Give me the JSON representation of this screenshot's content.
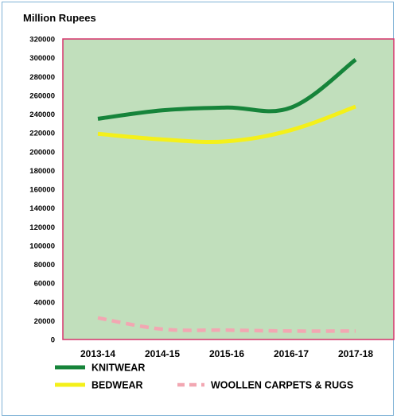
{
  "chart_data": {
    "type": "line",
    "unit_label": "Million Rupees",
    "categories": [
      "2013-14",
      "2014-15",
      "2015-16",
      "2016-17",
      "2017-18"
    ],
    "ylim": [
      0,
      320000
    ],
    "yticks": [
      "0",
      "20000",
      "40000",
      "60000",
      "80000",
      "100000",
      "120000",
      "140000",
      "160000",
      "180000",
      "200000",
      "220000",
      "240000",
      "260000",
      "280000",
      "300000",
      "320000"
    ],
    "grid": false,
    "plot_background": "#c1dfbc",
    "plot_border": "#d6336c",
    "legend_position": "bottom",
    "series": [
      {
        "name": "KNITWEAR",
        "color": "#16843a",
        "style": "solid",
        "values": [
          235000,
          244000,
          247000,
          247000,
          298000
        ]
      },
      {
        "name": "BEDWEAR",
        "color": "#f4f01a",
        "style": "solid",
        "values": [
          219000,
          213000,
          211000,
          223000,
          248000
        ]
      },
      {
        "name": "WOOLLEN CARPETS & RUGS",
        "color": "#f2a7b2",
        "style": "dashed",
        "values": [
          23000,
          11000,
          10000,
          9000,
          9000
        ]
      }
    ]
  }
}
